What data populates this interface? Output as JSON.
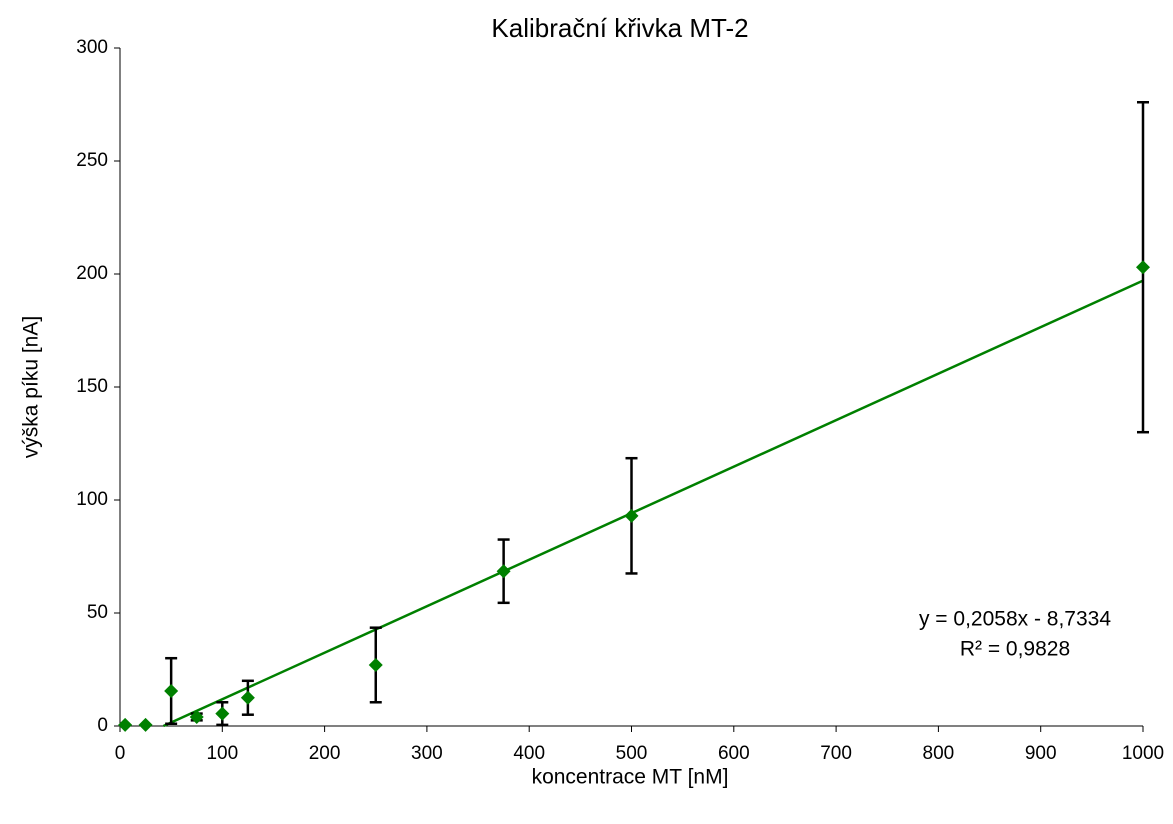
{
  "chart_data": {
    "type": "scatter",
    "title": "Kalibrační křivka MT-2",
    "x_label": "koncentrace MT [nM]",
    "y_label": "výška píku [nA]",
    "xlim": [
      0,
      1000
    ],
    "xticks": [
      0,
      100,
      200,
      300,
      400,
      500,
      600,
      700,
      800,
      900,
      1000
    ],
    "ylim": [
      0,
      300
    ],
    "yticks": [
      0,
      50,
      100,
      150,
      200,
      250,
      300
    ],
    "series": [
      {
        "color": "#008000",
        "error_color": "#000000",
        "x": [
          5,
          25,
          50,
          75,
          100,
          125,
          250,
          375,
          500,
          1000
        ],
        "values": [
          0.5,
          0.5,
          15.5,
          4,
          5.5,
          12.5,
          27,
          68.5,
          93,
          203
        ],
        "errors": [
          null,
          null,
          14.5,
          1.5,
          5,
          7.5,
          16.5,
          14,
          25.5,
          73
        ]
      }
    ],
    "trendline": {
      "slope": 0.2058,
      "intercept": -8.7334,
      "color": "#008000",
      "equation": "y = 0,2058x - 8,7334",
      "r2": "R² = 0,9828"
    }
  }
}
